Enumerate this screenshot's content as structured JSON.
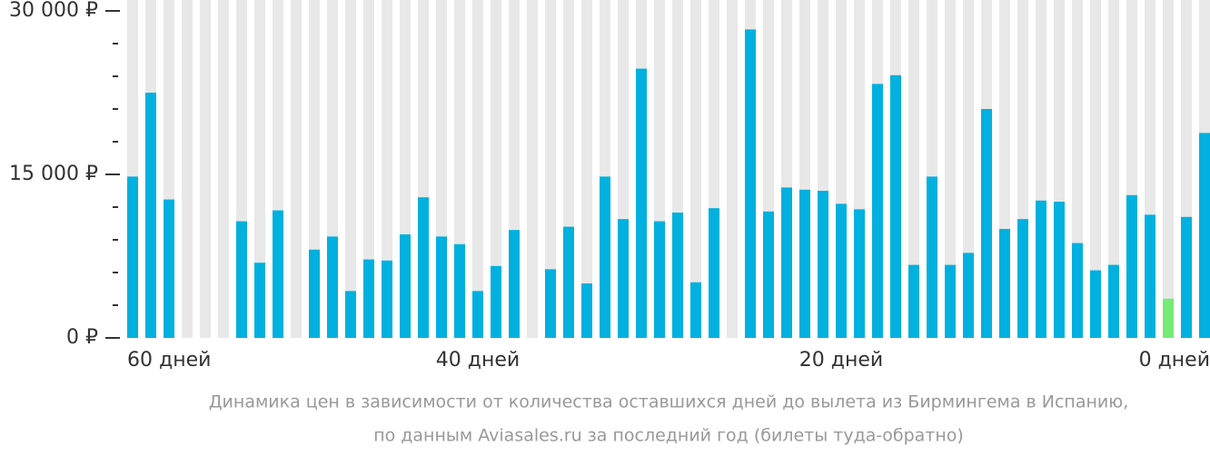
{
  "chart_data": {
    "type": "bar",
    "categories": [
      "60 дней",
      null,
      null,
      null,
      null,
      null,
      null,
      null,
      null,
      null,
      null,
      null,
      null,
      null,
      null,
      null,
      null,
      null,
      null,
      "40 дней",
      null,
      null,
      null,
      null,
      null,
      null,
      null,
      null,
      null,
      null,
      null,
      null,
      null,
      null,
      null,
      null,
      null,
      null,
      null,
      "20 дней",
      null,
      null,
      null,
      null,
      null,
      null,
      null,
      null,
      null,
      null,
      null,
      null,
      null,
      null,
      null,
      null,
      null,
      null,
      null,
      "0 дней"
    ],
    "values": [
      14800,
      22500,
      12700,
      null,
      null,
      null,
      10700,
      6900,
      11700,
      null,
      8100,
      9300,
      4300,
      7200,
      7100,
      9500,
      12900,
      9300,
      8600,
      4300,
      6600,
      9900,
      null,
      6300,
      10200,
      5000,
      14800,
      10900,
      24700,
      10700,
      11500,
      5100,
      11900,
      null,
      28300,
      11600,
      13800,
      13600,
      13500,
      12300,
      11800,
      23300,
      24100,
      6700,
      14800,
      6700,
      7800,
      21000,
      10000,
      10900,
      12600,
      12500,
      8700,
      6200,
      6700,
      13100,
      11300,
      3600,
      11100,
      18800
    ],
    "color": "#00b0de",
    "highlight": {
      "index": 57,
      "color": "#77ea77"
    },
    "ylim": [
      0,
      30000
    ],
    "yticks": [
      {
        "value": 0,
        "label": "0 ₽"
      },
      {
        "value": 15000,
        "label": "15 000 ₽"
      },
      {
        "value": 30000,
        "label": "30 000 ₽"
      }
    ],
    "yminor_ticks": [
      3000,
      6000,
      9000,
      12000,
      18000,
      21000,
      24000,
      27000
    ],
    "caption": [
      "Динамика цен в зависимости от количества оставшихся дней до вылета из Бирмингема в Испанию,",
      "по данным Aviasales.ru за последний год (билеты туда-обратно)"
    ]
  }
}
